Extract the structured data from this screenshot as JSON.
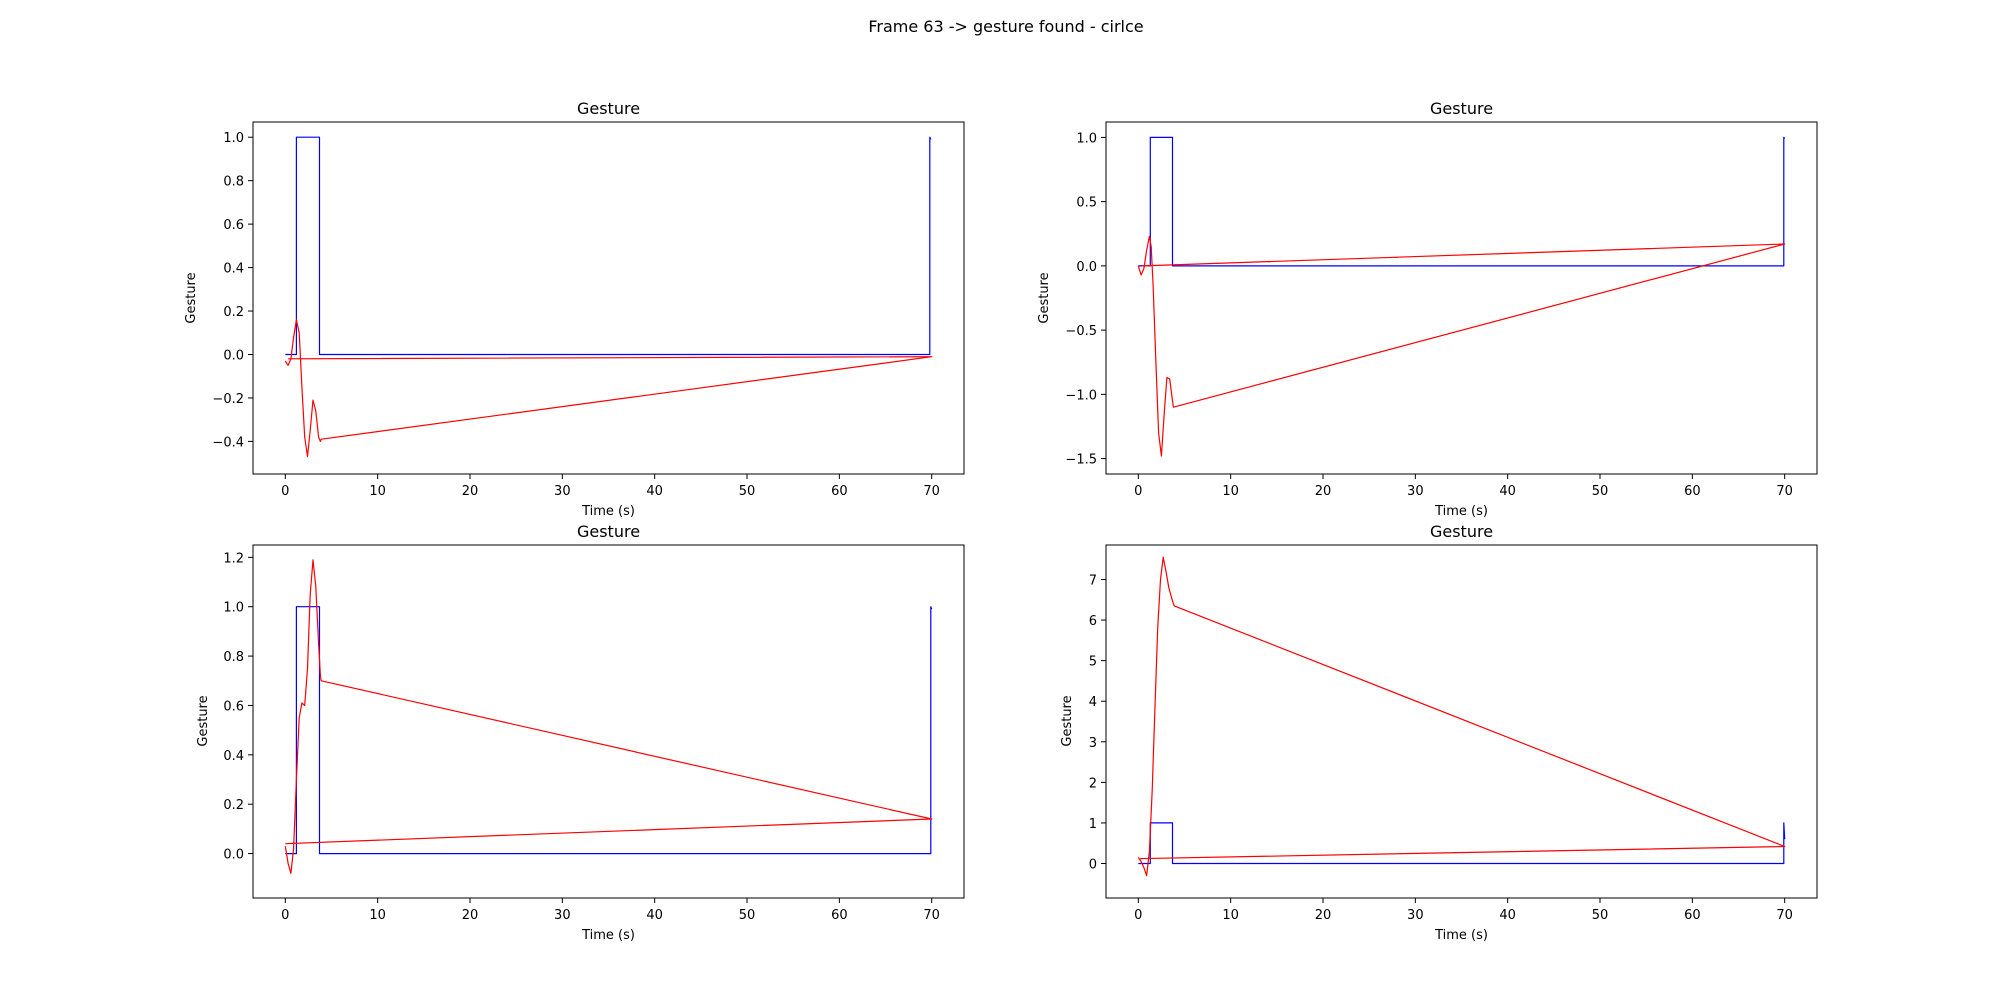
{
  "figure": {
    "suptitle": "Frame 63 -> gesture found - cirlce"
  },
  "chart_data": [
    {
      "type": "line",
      "title": "Gesture",
      "xlabel": "Time (s)",
      "ylabel": "Gesture",
      "xlim": [
        -3.5,
        73.5
      ],
      "ylim": [
        -0.55,
        1.07
      ],
      "xticks": [
        0,
        10,
        20,
        30,
        40,
        50,
        60,
        70
      ],
      "yticks": [
        -0.4,
        -0.2,
        0.0,
        0.2,
        0.4,
        0.6,
        0.8,
        1.0
      ],
      "ytick_labels": [
        "−0.4",
        "−0.2",
        "0.0",
        "0.2",
        "0.4",
        "0.6",
        "0.8",
        "1.0"
      ],
      "series": [
        {
          "color": "#0000ff",
          "x": [
            0,
            1.2,
            1.2,
            3.7,
            3.7,
            69.8,
            69.8,
            69.9
          ],
          "y": [
            0,
            0,
            1,
            1,
            0,
            0,
            1,
            0.99
          ]
        },
        {
          "color": "#ff0000",
          "x": [
            0,
            0.3,
            0.6,
            0.9,
            1.2,
            1.5,
            1.8,
            2.1,
            2.4,
            2.7,
            3.0,
            3.3,
            3.6,
            3.8,
            3.9,
            70,
            0.3
          ],
          "y": [
            -0.03,
            -0.05,
            -0.02,
            0.08,
            0.16,
            0.1,
            -0.15,
            -0.38,
            -0.47,
            -0.35,
            -0.21,
            -0.26,
            -0.38,
            -0.4,
            -0.39,
            -0.01,
            -0.02
          ]
        }
      ]
    },
    {
      "type": "line",
      "title": "Gesture",
      "xlabel": "Time (s)",
      "ylabel": "Gesture",
      "xlim": [
        -3.5,
        73.5
      ],
      "ylim": [
        -1.62,
        1.12
      ],
      "xticks": [
        0,
        10,
        20,
        30,
        40,
        50,
        60,
        70
      ],
      "yticks": [
        -1.5,
        -1.0,
        -0.5,
        0.0,
        0.5,
        1.0
      ],
      "ytick_labels": [
        "−1.5",
        "−1.0",
        "−0.5",
        "0.0",
        "0.5",
        "1.0"
      ],
      "series": [
        {
          "color": "#0000ff",
          "x": [
            0,
            1.3,
            1.3,
            3.7,
            3.7,
            69.9,
            69.9,
            70.0
          ],
          "y": [
            0,
            0,
            1,
            1,
            0,
            0,
            1,
            0.99
          ]
        },
        {
          "color": "#ff0000",
          "x": [
            0,
            0.3,
            0.6,
            0.9,
            1.2,
            1.4,
            1.6,
            1.9,
            2.2,
            2.5,
            2.8,
            3.1,
            3.4,
            3.7,
            3.8,
            70,
            0.4
          ],
          "y": [
            0.0,
            -0.07,
            -0.02,
            0.12,
            0.23,
            0.15,
            -0.15,
            -0.75,
            -1.3,
            -1.48,
            -1.15,
            -0.87,
            -0.88,
            -1.05,
            -1.1,
            0.17,
            0.0
          ]
        }
      ]
    },
    {
      "type": "line",
      "title": "Gesture",
      "xlabel": "Time (s)",
      "ylabel": "Gesture",
      "xlim": [
        -3.5,
        73.5
      ],
      "ylim": [
        -0.18,
        1.25
      ],
      "xticks": [
        0,
        10,
        20,
        30,
        40,
        50,
        60,
        70
      ],
      "yticks": [
        0.0,
        0.2,
        0.4,
        0.6,
        0.8,
        1.0,
        1.2
      ],
      "ytick_labels": [
        "0.0",
        "0.2",
        "0.4",
        "0.6",
        "0.8",
        "1.0",
        "1.2"
      ],
      "series": [
        {
          "color": "#0000ff",
          "x": [
            0,
            1.2,
            1.2,
            3.7,
            3.7,
            69.9,
            69.9,
            70.0
          ],
          "y": [
            0,
            0,
            1,
            1,
            0,
            0,
            1,
            0.99
          ]
        },
        {
          "color": "#ff0000",
          "x": [
            0,
            0.3,
            0.6,
            0.9,
            1.2,
            1.5,
            1.8,
            2.1,
            2.4,
            2.7,
            3.0,
            3.3,
            3.6,
            3.8,
            3.9,
            70,
            0.0
          ],
          "y": [
            0.03,
            -0.04,
            -0.08,
            0.02,
            0.3,
            0.55,
            0.61,
            0.6,
            0.75,
            1.05,
            1.19,
            1.08,
            0.85,
            0.72,
            0.7,
            0.14,
            0.04
          ]
        }
      ]
    },
    {
      "type": "line",
      "title": "Gesture",
      "xlabel": "Time (s)",
      "ylabel": "Gesture",
      "xlim": [
        -3.5,
        73.5
      ],
      "ylim": [
        -0.85,
        7.85
      ],
      "xticks": [
        0,
        10,
        20,
        30,
        40,
        50,
        60,
        70
      ],
      "yticks": [
        0,
        1,
        2,
        3,
        4,
        5,
        6,
        7
      ],
      "ytick_labels": [
        "0",
        "1",
        "2",
        "3",
        "4",
        "5",
        "6",
        "7"
      ],
      "series": [
        {
          "color": "#0000ff",
          "x": [
            0,
            1.3,
            1.3,
            3.7,
            3.7,
            69.9,
            69.9,
            70.0
          ],
          "y": [
            0,
            0,
            1,
            1,
            0,
            0,
            1,
            0.6
          ]
        },
        {
          "color": "#ff0000",
          "x": [
            0,
            0.3,
            0.6,
            0.9,
            1.2,
            1.5,
            1.8,
            2.1,
            2.4,
            2.7,
            3.0,
            3.3,
            3.6,
            3.8,
            3.9,
            70,
            0.2
          ],
          "y": [
            0.15,
            0.05,
            -0.1,
            -0.3,
            0.3,
            1.8,
            3.8,
            5.8,
            7.0,
            7.55,
            7.2,
            6.8,
            6.55,
            6.4,
            6.35,
            0.42,
            0.12
          ]
        }
      ]
    }
  ]
}
